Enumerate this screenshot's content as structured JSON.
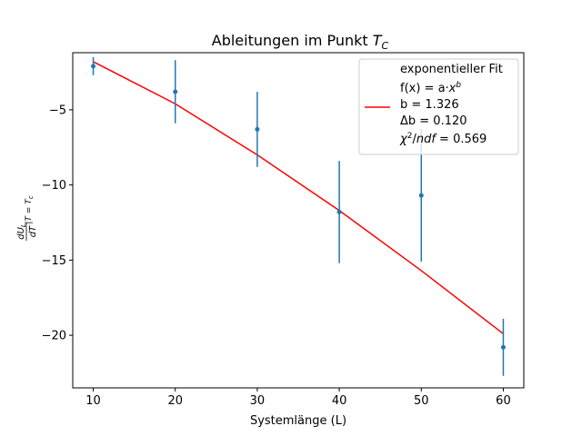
{
  "chart_data": {
    "type": "line",
    "title": "Ableitungen im Punkt",
    "title_math": "T",
    "title_math_sub": "C",
    "xlabel": "Systemlänge (L)",
    "ylabel": "dU/dT |T=Tc",
    "xlim": [
      7.5,
      62.5
    ],
    "ylim": [
      -23.5,
      -1.2
    ],
    "xticks": [
      10,
      20,
      30,
      40,
      50,
      60
    ],
    "yticks": [
      -5,
      -10,
      -15,
      -20
    ],
    "ytick_labels": [
      "−5",
      "−10",
      "−15",
      "−20"
    ],
    "grid": false,
    "legend_position": "top-right",
    "data_series": {
      "name": "",
      "color": "#1f77b4",
      "x": [
        10,
        20,
        30,
        40,
        50,
        60
      ],
      "y": [
        -2.1,
        -3.8,
        -6.3,
        -11.8,
        -10.7,
        -20.8
      ],
      "yerr": [
        0.6,
        2.1,
        2.5,
        3.4,
        4.4,
        1.9
      ]
    },
    "fit_series": {
      "name": "exponentieller Fit",
      "color": "#ff0000",
      "x": [
        10,
        20,
        30,
        40,
        50,
        60
      ],
      "y": [
        -1.8,
        -4.6,
        -8.0,
        -11.7,
        -15.7,
        -19.9
      ]
    },
    "legend": {
      "line1": "exponentieller Fit",
      "line2_prefix": "f(x) = a·",
      "line2_var": "x",
      "line2_exp": "b",
      "line3": "b = 1.326",
      "line4": "Δb = 0.120",
      "line5_chi": "χ",
      "line5_exp": "2",
      "line5_rest": "/ndf = 0.569",
      "line5_ndf": "ndf",
      "line5_value": " = 0.569"
    }
  }
}
